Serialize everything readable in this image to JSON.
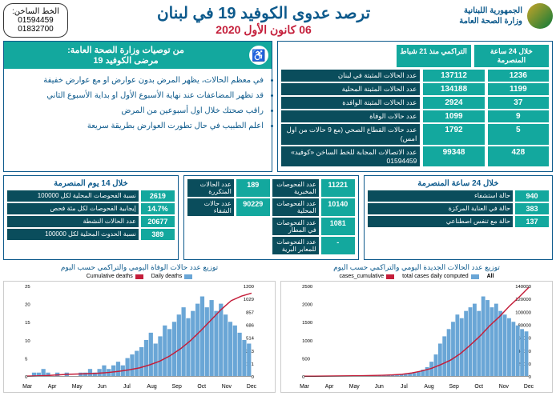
{
  "header": {
    "org1": "الجمهورية اللبنانية",
    "org2": "وزارة الصحة العامة",
    "title": "ترصد عدوى الكوفيد 19 في لبنان",
    "date": "06 كانون الأول 2020"
  },
  "hotline": {
    "label": "الخط الساخن:",
    "n1": "01594459",
    "n2": "01832700"
  },
  "main_stats": {
    "h1": "خلال 24 ساعة المنصرمة",
    "h2": "التراكمي منذ 21 شباط",
    "rows": [
      {
        "l": "عدد الحالات المثبتة في لبنان",
        "v1": "1236",
        "v2": "137112"
      },
      {
        "l": "عدد الحالات المثبتة المحلية",
        "v1": "1199",
        "v2": "134188"
      },
      {
        "l": "عدد الحالات المثبتة الوافدة",
        "v1": "37",
        "v2": "2924"
      },
      {
        "l": "عدد حالات الوفاة",
        "v1": "9",
        "v2": "1099"
      },
      {
        "l": "عدد حالات القطاع الصحي (مع 9 حالات من اول امس)",
        "v1": "5",
        "v2": "1792"
      },
      {
        "l": "عدد الاتصالات المجابة للخط الساخن «كوفيد» 01594459",
        "v1": "428",
        "v2": "99348"
      }
    ]
  },
  "advice": {
    "title": "من توصيات وزارة الصحة العامة:",
    "sub": "مرضى الكوفيد 19",
    "items": [
      "في معظم الحالات، يظهر المرض بدون عوارض او مع عوارض خفيفة",
      "قد تظهر المضاعفات عند نهاية الأسبوع الأول او بداية الأسبوع الثاني",
      "راقب صحتك خلال اول أسبوعين من المرض",
      "اعلم الطبيب في حال تطورت العوارض بطريقة سريعة"
    ]
  },
  "last24": {
    "title": "خلال 24 ساعة المنصرمة",
    "rows": [
      {
        "l": "حالة استشفاء",
        "v": "940"
      },
      {
        "l": "حالة في العناية المركزة",
        "v": "383"
      },
      {
        "l": "حالة مع تنفس اصطناعي",
        "v": "137"
      }
    ]
  },
  "tests": {
    "cols": [
      [
        {
          "l": "عدد الفحوصات المخبرية",
          "v": "11221"
        },
        {
          "l": "عدد الفحوصات المحلية",
          "v": "10140"
        },
        {
          "l": "عدد الفحوصات في المطار",
          "v": "1081"
        },
        {
          "l": "عدد الفحوصات للمعابر البرية",
          "v": "-"
        }
      ],
      [
        {
          "l": "عدد الحالات المتكررة",
          "v": "189"
        },
        {
          "l": "عدد حالات الشفاء",
          "v": "90229"
        }
      ]
    ]
  },
  "last14": {
    "title": "خلال 14 يوم المنصرمة",
    "rows": [
      {
        "l": "نسبة الفحوصات المحلية لكل 100000",
        "v": "2619"
      },
      {
        "l": "إيجابية الفحوصات لكل مئة فحص",
        "v": "14.7%"
      },
      {
        "l": "عدد الحالات النشطة",
        "v": "20677"
      },
      {
        "l": "نسبة الحدوث المحلية لكل 100000",
        "v": "389"
      }
    ]
  },
  "chart_cases": {
    "title": "توزيع عدد الحالات الجديدة اليومي والتراكمي حسب اليوم",
    "leg1": "total cases daily computed",
    "leg2": "cases_cumulative",
    "all": "All",
    "c_bar": "#6aa6d6",
    "c_line": "#c41e3a",
    "y1max": 2500,
    "y2max": 140000,
    "months": [
      "Mar",
      "Apr",
      "May",
      "Jun",
      "Jul",
      "Aug",
      "Sep",
      "Oct",
      "Nov",
      "Dec"
    ],
    "bars": [
      5,
      8,
      12,
      10,
      8,
      15,
      10,
      8,
      6,
      5,
      4,
      5,
      6,
      8,
      10,
      12,
      15,
      18,
      22,
      25,
      30,
      35,
      45,
      55,
      70,
      90,
      120,
      180,
      250,
      400,
      600,
      900,
      1100,
      1300,
      1500,
      1700,
      1600,
      1800,
      1900,
      2000,
      1800,
      2200,
      2100,
      1900,
      2000,
      1800,
      1700,
      1600,
      1500,
      1400,
      1300,
      1236
    ],
    "cum": [
      50,
      100,
      200,
      350,
      500,
      700,
      900,
      1200,
      1500,
      2000,
      3000,
      5000,
      8000,
      12000,
      18000,
      25000,
      35000,
      48000,
      62000,
      78000,
      92000,
      108000,
      122000,
      137112
    ]
  },
  "chart_deaths": {
    "title": "توزيع عدد حالات الوفاة اليومي والتراكمي حسب اليوم",
    "leg1": "Daily deaths",
    "leg2": "Cumulative deaths",
    "c_bar": "#6aa6d6",
    "c_line": "#c41e3a",
    "y1max": 25,
    "y2max": 1200,
    "months": [
      "Mar",
      "Apr",
      "May",
      "Jun",
      "Jul",
      "Aug",
      "Sep",
      "Oct",
      "Nov",
      "Dec"
    ],
    "bars": [
      0,
      1,
      1,
      2,
      1,
      0,
      1,
      0,
      1,
      0,
      0,
      1,
      1,
      2,
      1,
      2,
      3,
      2,
      3,
      4,
      3,
      5,
      6,
      7,
      8,
      10,
      12,
      9,
      11,
      14,
      13,
      15,
      17,
      19,
      16,
      18,
      20,
      22,
      19,
      21,
      18,
      20,
      17,
      15,
      14,
      12,
      10,
      9
    ],
    "cum": [
      2,
      5,
      10,
      18,
      25,
      30,
      35,
      40,
      50,
      65,
      85,
      110,
      150,
      200,
      270,
      360,
      470,
      600,
      740,
      880,
      1000,
      1060,
      1099
    ]
  }
}
